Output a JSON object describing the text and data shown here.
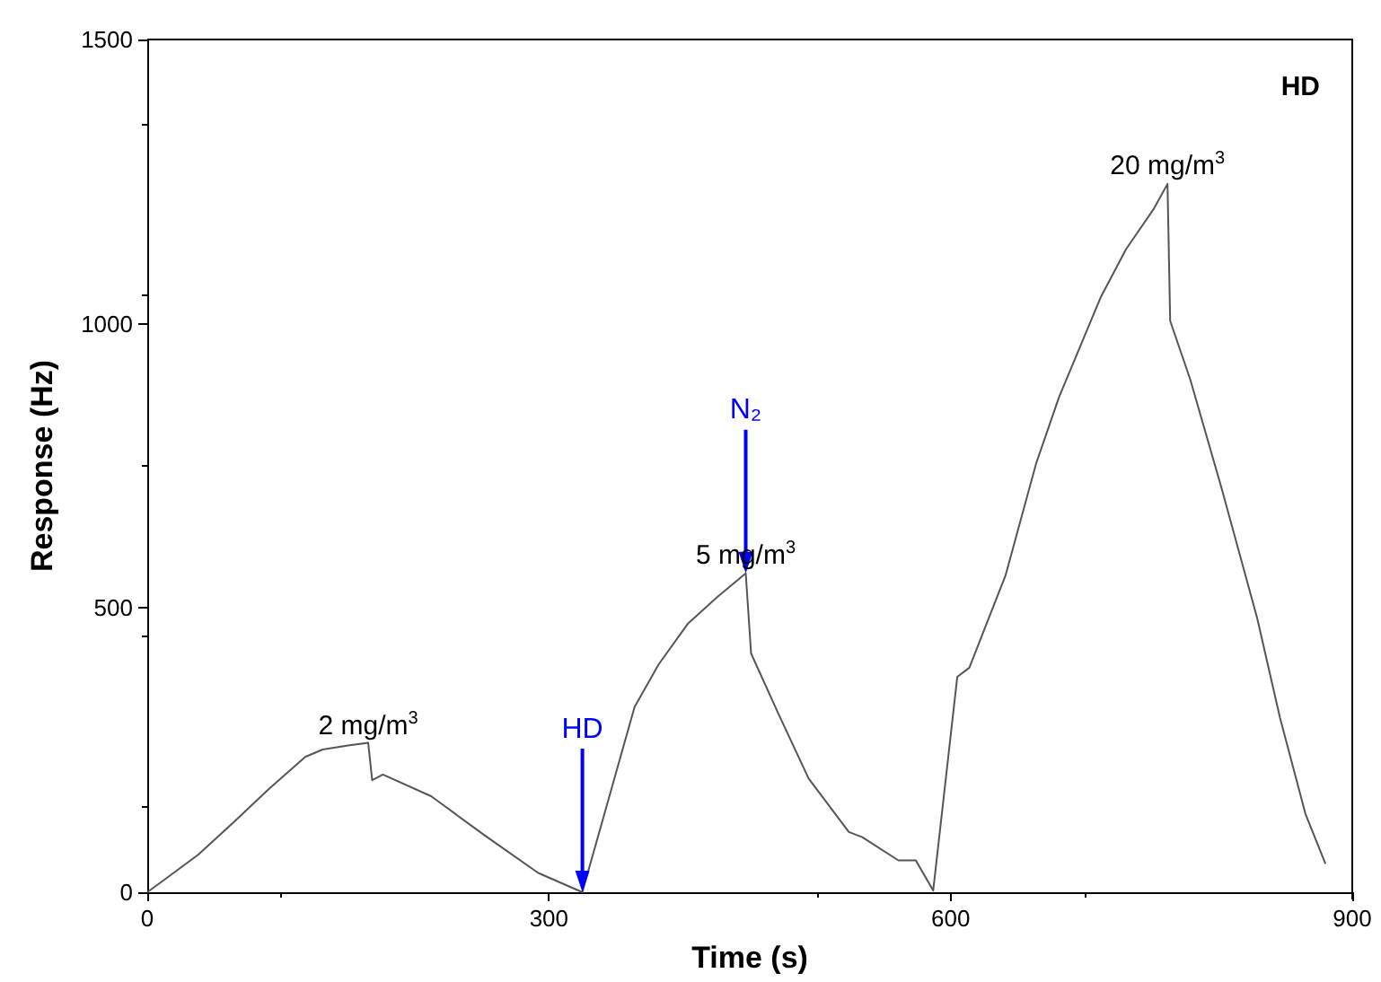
{
  "chart_data": {
    "type": "line",
    "xlabel": "Time (s)",
    "ylabel": "Response (Hz)",
    "xlim": [
      0,
      900
    ],
    "xticks": [
      0,
      300,
      600,
      900
    ],
    "ylim": [
      0,
      1500
    ],
    "yticks": [
      0,
      500,
      1000,
      1500
    ],
    "grid": false,
    "marker": "none",
    "line_style": "solid",
    "annotations": [
      "HD",
      {
        "text": "2 mg/m$^{3}$",
        "x": 165,
        "y": 263
      },
      {
        "text": "5 mg/m$^{3}$",
        "x": 447,
        "y": 561
      },
      {
        "text": "20 mg/m$^{3}$",
        "x": 762,
        "y": 1246
      }
    ],
    "ref_lines": [
      {
        "axis": "x",
        "value": 325,
        "label": "HD",
        "color": "#0000ff"
      },
      {
        "axis": "x",
        "value": 447,
        "label": "N₂",
        "color": "#0000ff"
      }
    ],
    "series": [
      {
        "color": "#555555",
        "x": [
          0,
          11,
          38,
          64,
          91,
          118,
          131,
          150,
          165,
          168,
          176,
          212,
          252,
          292,
          325,
          326,
          364,
          382,
          404,
          426,
          447,
          451,
          471,
          494,
          524,
          534,
          561,
          574,
          587,
          605,
          614,
          641,
          664,
          681,
          712,
          731,
          752,
          762,
          764,
          779,
          802,
          829,
          846,
          865,
          880
        ],
        "values": [
          0,
          19,
          66,
          122,
          182,
          238,
          251,
          258,
          263,
          197,
          207,
          169,
          100,
          34,
          0,
          9,
          326,
          401,
          473,
          520,
          561,
          420,
          316,
          200,
          106,
          97,
          56,
          56,
          3,
          379,
          395,
          557,
          755,
          871,
          1046,
          1131,
          1203,
          1246,
          1005,
          902,
          714,
          482,
          307,
          138,
          50
        ]
      }
    ]
  }
}
